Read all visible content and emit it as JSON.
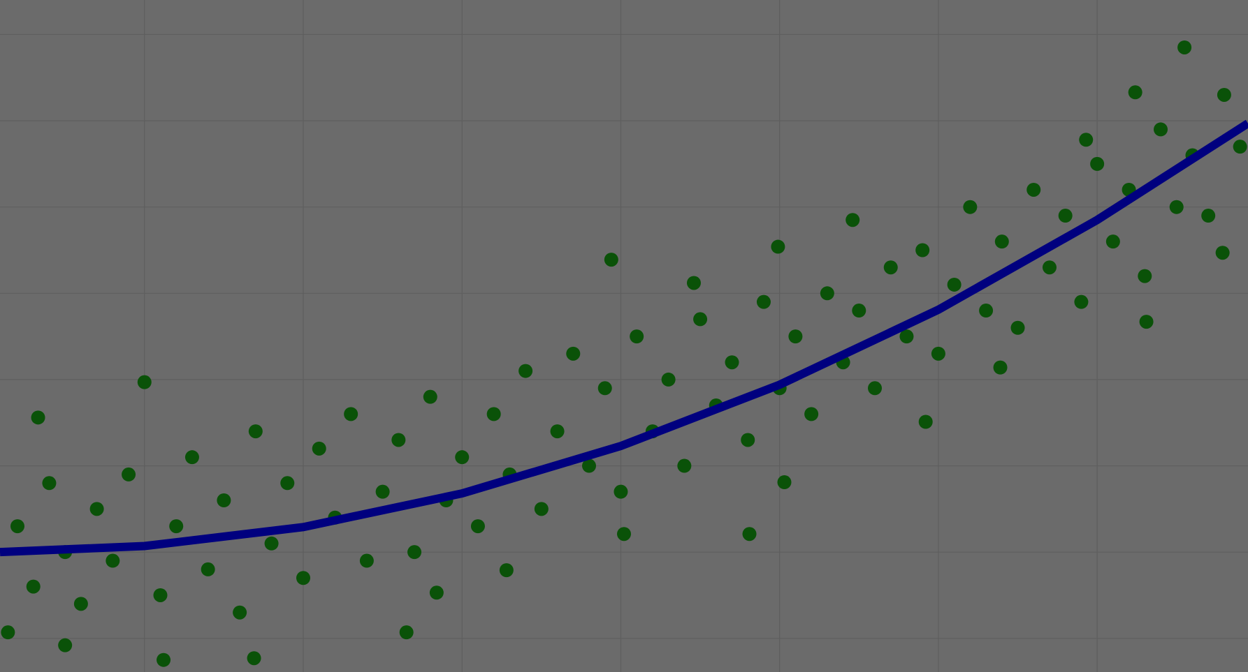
{
  "chart_data": {
    "type": "scatter",
    "grid": true,
    "background": "#6b6b6b",
    "grid_color": "#5e5e5e",
    "xlim": [
      0.09,
      7.95
    ],
    "ylim": [
      -0.39,
      7.4
    ],
    "xticks": [
      1,
      2,
      3,
      4,
      5,
      6,
      7
    ],
    "yticks": [
      0,
      1,
      2,
      3,
      4,
      5,
      6,
      7
    ],
    "series": [
      {
        "type": "scatter",
        "color": "#0a5208",
        "x": [
          0.2,
          0.3,
          0.4,
          0.5,
          0.6,
          0.7,
          0.8,
          0.9,
          1.1,
          1.2,
          1.3,
          1.4,
          1.5,
          1.6,
          1.7,
          1.8,
          1.9,
          2.0,
          2.1,
          2.2,
          2.3,
          2.4,
          2.5,
          2.6,
          2.7,
          2.8,
          2.9,
          3.0,
          3.1,
          3.2,
          3.3,
          3.4,
          3.5,
          3.6,
          3.7,
          3.8,
          3.9,
          4.0,
          4.1,
          4.2,
          4.3,
          4.4,
          4.5,
          4.6,
          4.7,
          4.8,
          4.9,
          5.0,
          5.1,
          5.2,
          5.3,
          5.4,
          5.5,
          5.6,
          5.7,
          5.8,
          5.9,
          6.0,
          6.1,
          6.2,
          6.3,
          6.4,
          6.5,
          6.6,
          6.7,
          6.8,
          6.9,
          7.0,
          7.1,
          7.2,
          7.3,
          7.4,
          7.5,
          7.6,
          7.7,
          7.8,
          7.9,
          1.0,
          3.94,
          4.46,
          4.99,
          5.46,
          7.55,
          0.33,
          1.12,
          1.69,
          2.65,
          4.81,
          7.31,
          6.39,
          5.92,
          5.03,
          4.02,
          3.28,
          2.84,
          0.5,
          0.14,
          7.79,
          7.24,
          6.93
        ],
        "y": [
          1.3,
          0.6,
          1.8,
          1.0,
          0.4,
          1.5,
          0.9,
          1.9,
          0.5,
          1.3,
          2.1,
          0.8,
          1.6,
          0.3,
          2.4,
          1.1,
          1.8,
          0.7,
          2.2,
          1.4,
          2.6,
          0.9,
          1.7,
          2.3,
          1.0,
          2.8,
          1.6,
          2.1,
          1.3,
          2.6,
          1.9,
          3.1,
          1.5,
          2.4,
          3.3,
          2.0,
          2.9,
          1.7,
          3.5,
          2.4,
          3.0,
          2.0,
          3.7,
          2.7,
          3.2,
          2.3,
          3.9,
          2.9,
          3.5,
          2.6,
          4.0,
          3.2,
          3.8,
          2.9,
          4.3,
          3.5,
          4.5,
          3.3,
          4.1,
          5.0,
          3.8,
          4.6,
          3.6,
          5.2,
          4.3,
          4.9,
          3.9,
          5.5,
          4.6,
          5.2,
          4.2,
          5.9,
          5.0,
          5.6,
          4.9,
          6.3,
          5.7,
          2.97,
          4.39,
          4.12,
          4.54,
          4.85,
          6.85,
          2.56,
          -0.25,
          -0.23,
          0.07,
          1.21,
          3.67,
          3.14,
          2.51,
          1.81,
          1.21,
          0.79,
          0.53,
          -0.08,
          0.07,
          4.47,
          6.33,
          5.78
        ]
      },
      {
        "type": "line",
        "color": "#00007f",
        "x": [
          0.09,
          1,
          2,
          3,
          4,
          5,
          6,
          7,
          7.95
        ],
        "y": [
          1.0,
          1.07,
          1.29,
          1.68,
          2.23,
          2.94,
          3.81,
          4.85,
          5.97
        ]
      }
    ]
  }
}
